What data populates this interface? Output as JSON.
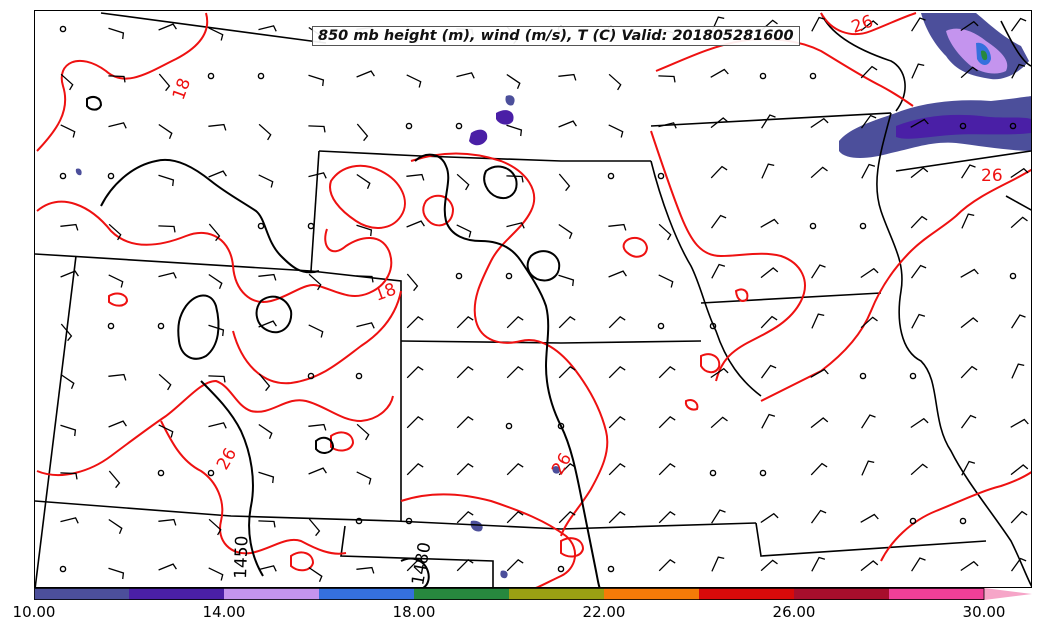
{
  "map": {
    "title": "850 mb height (m), wind (m/s), T (C) Valid: 201805281600",
    "temperature_labels": [
      "18",
      "18",
      "26",
      "26",
      "26",
      "26"
    ],
    "height_labels": [
      "1450",
      "1480"
    ],
    "colors": {
      "temperature_contour": "#ee1111",
      "height_contour": "#000000",
      "state_border": "#000000",
      "wind_barb": "#000000"
    }
  },
  "colorbar": {
    "tick_labels": [
      "10.00",
      "14.00",
      "18.00",
      "22.00",
      "26.00",
      "30.00"
    ],
    "colors": [
      "#4c4f9b",
      "#4a1fa6",
      "#c494ee",
      "#3570dd",
      "#27883e",
      "#9aa013",
      "#f57b08",
      "#d80a0a",
      "#a70e2c",
      "#f03f98",
      "#f6a5c8"
    ]
  }
}
